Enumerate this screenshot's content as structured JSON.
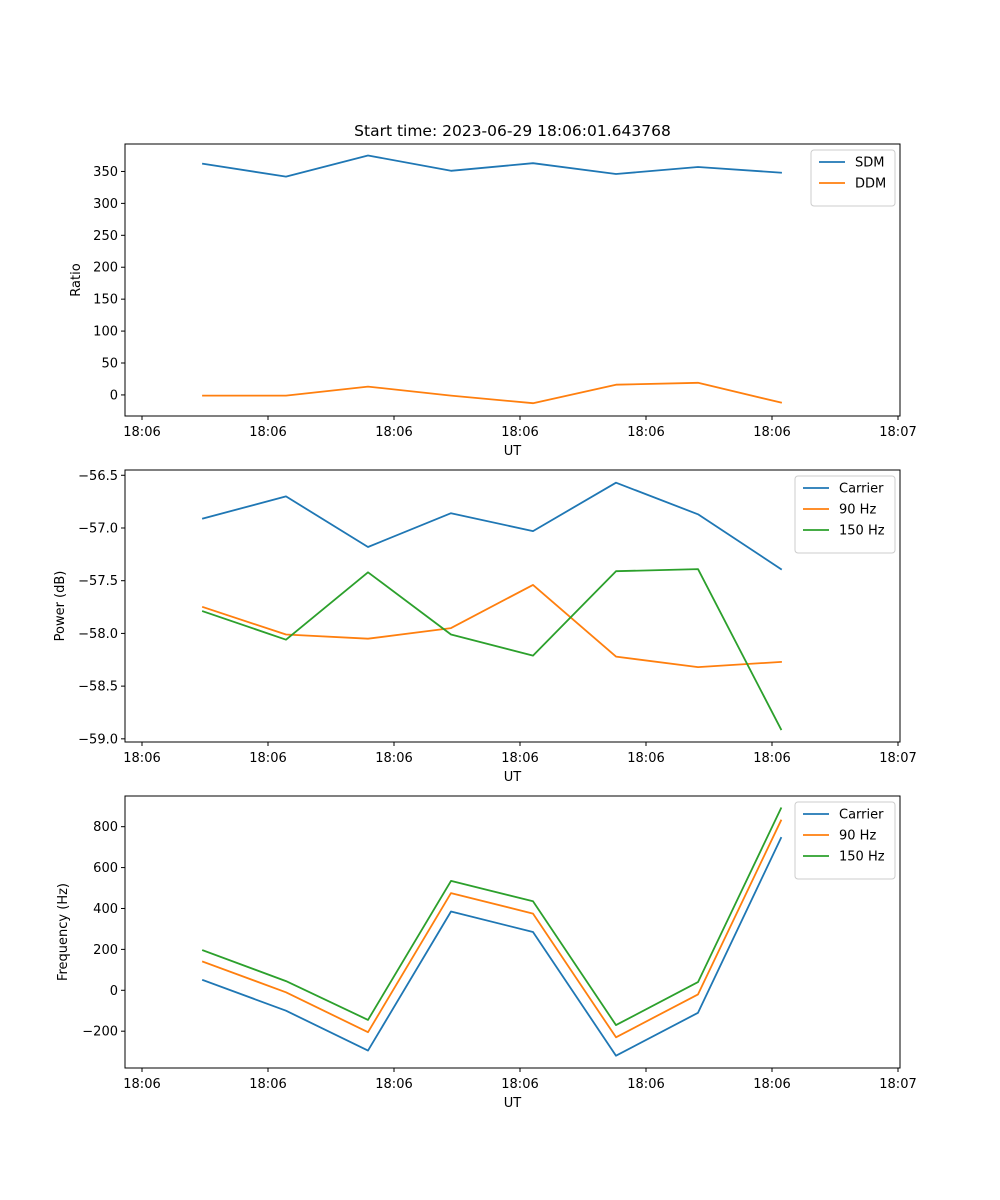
{
  "figure": {
    "title": "Start time: 2023-06-29 18:06:01.643768"
  },
  "chart_data": [
    {
      "type": "line",
      "title": "Start time: 2023-06-29 18:06:01.643768",
      "xlabel": "UT",
      "ylabel": "Ratio",
      "x_tick_labels": [
        "18:06",
        "18:06",
        "18:06",
        "18:06",
        "18:06",
        "18:06",
        "18:07"
      ],
      "y_ticks": [
        0,
        50,
        100,
        150,
        200,
        250,
        300,
        350
      ],
      "ylim": [
        -33,
        393
      ],
      "legend": "top-right",
      "grid": false,
      "series": [
        {
          "name": "SDM",
          "color": "#1f77b4",
          "values": [
            362,
            342,
            375,
            351,
            363,
            346,
            357,
            348
          ]
        },
        {
          "name": "DDM",
          "color": "#ff7f0e",
          "values": [
            -1,
            -1,
            13,
            -1,
            -13,
            16,
            19,
            -12
          ]
        }
      ]
    },
    {
      "type": "line",
      "title": "",
      "xlabel": "UT",
      "ylabel": "Power (dB)",
      "x_tick_labels": [
        "18:06",
        "18:06",
        "18:06",
        "18:06",
        "18:06",
        "18:06",
        "18:07"
      ],
      "y_ticks": [
        -59.0,
        -58.5,
        -58.0,
        -57.5,
        -57.0,
        -56.5
      ],
      "ylim": [
        -59.03,
        -56.45
      ],
      "legend": "top-right",
      "grid": false,
      "series": [
        {
          "name": "Carrier",
          "color": "#1f77b4",
          "values": [
            -56.91,
            -56.7,
            -57.18,
            -56.86,
            -57.03,
            -56.57,
            -56.87,
            -57.39
          ]
        },
        {
          "name": "90 Hz",
          "color": "#ff7f0e",
          "values": [
            -57.75,
            -58.01,
            -58.05,
            -57.95,
            -57.54,
            -58.22,
            -58.32,
            -58.27
          ]
        },
        {
          "name": "150 Hz",
          "color": "#2ca02c",
          "values": [
            -57.79,
            -58.06,
            -57.42,
            -58.01,
            -58.21,
            -57.41,
            -57.39,
            -58.91
          ]
        }
      ]
    },
    {
      "type": "line",
      "title": "",
      "xlabel": "UT",
      "ylabel": "Frequency (Hz)",
      "x_tick_labels": [
        "18:06",
        "18:06",
        "18:06",
        "18:06",
        "18:06",
        "18:06",
        "18:07"
      ],
      "y_ticks": [
        -200,
        0,
        200,
        400,
        600,
        800
      ],
      "ylim": [
        -380,
        950
      ],
      "legend": "top-right",
      "grid": false,
      "series": [
        {
          "name": "Carrier",
          "color": "#1f77b4",
          "values": [
            50,
            -100,
            -295,
            385,
            285,
            -320,
            -110,
            745
          ]
        },
        {
          "name": "90 Hz",
          "color": "#ff7f0e",
          "values": [
            140,
            -10,
            -205,
            475,
            375,
            -230,
            -20,
            830
          ]
        },
        {
          "name": "150 Hz",
          "color": "#2ca02c",
          "values": [
            195,
            45,
            -145,
            535,
            435,
            -170,
            40,
            890
          ]
        }
      ]
    }
  ]
}
